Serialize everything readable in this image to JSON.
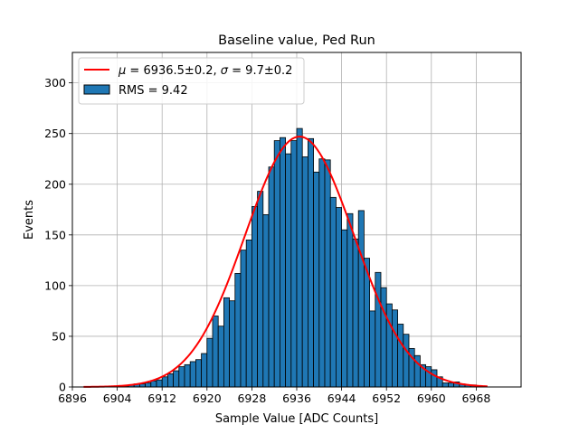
{
  "chart_data": {
    "type": "bar",
    "title": "Baseline value, Ped Run",
    "xlabel": "Sample Value [ADC Counts]",
    "ylabel": "Events",
    "xlim": [
      6896,
      6976
    ],
    "ylim": [
      0,
      330
    ],
    "xticks": [
      "6896",
      "6904",
      "6912",
      "6920",
      "6928",
      "6936",
      "6944",
      "6952",
      "6960",
      "6968"
    ],
    "yticks": [
      "0",
      "50",
      "100",
      "150",
      "200",
      "250",
      "300"
    ],
    "grid": true,
    "legend_position": "upper-left",
    "bar_color": "#1f77b4",
    "fit_color": "#ff0000",
    "legend": {
      "fit_mu_symbol": "μ",
      "fit_mu_text": " = 6936.5±0.2, ",
      "fit_sigma_symbol": "σ",
      "fit_sigma_text": " = 9.7±0.2",
      "rms_label": "RMS = 9.42"
    },
    "histogram": {
      "bin_width": 1,
      "bins_left_edges": [
        6904,
        6905,
        6906,
        6907,
        6908,
        6909,
        6910,
        6911,
        6912,
        6913,
        6914,
        6915,
        6916,
        6917,
        6918,
        6919,
        6920,
        6921,
        6922,
        6923,
        6924,
        6925,
        6926,
        6927,
        6928,
        6929,
        6930,
        6931,
        6932,
        6933,
        6934,
        6935,
        6936,
        6937,
        6938,
        6939,
        6940,
        6941,
        6942,
        6943,
        6944,
        6945,
        6946,
        6947,
        6948,
        6949,
        6950,
        6951,
        6952,
        6953,
        6954,
        6955,
        6956,
        6957,
        6958,
        6959,
        6960,
        6961,
        6962,
        6963,
        6964,
        6965,
        6966,
        6967,
        6968
      ],
      "counts": [
        1,
        1,
        2,
        3,
        3,
        4,
        6,
        7,
        10,
        13,
        16,
        20,
        22,
        25,
        27,
        33,
        48,
        70,
        60,
        88,
        85,
        112,
        135,
        145,
        178,
        193,
        170,
        217,
        243,
        246,
        230,
        243,
        255,
        227,
        245,
        212,
        225,
        224,
        187,
        177,
        155,
        171,
        146,
        174,
        127,
        75,
        113,
        98,
        82,
        76,
        62,
        52,
        38,
        31,
        22,
        20,
        17,
        10,
        4,
        4,
        5,
        3,
        2,
        2,
        1
      ]
    },
    "fit": {
      "model": "gaussian",
      "amplitude": 247,
      "mu": 6936.5,
      "sigma": 9.7,
      "x_range": [
        6898,
        6970
      ]
    }
  }
}
